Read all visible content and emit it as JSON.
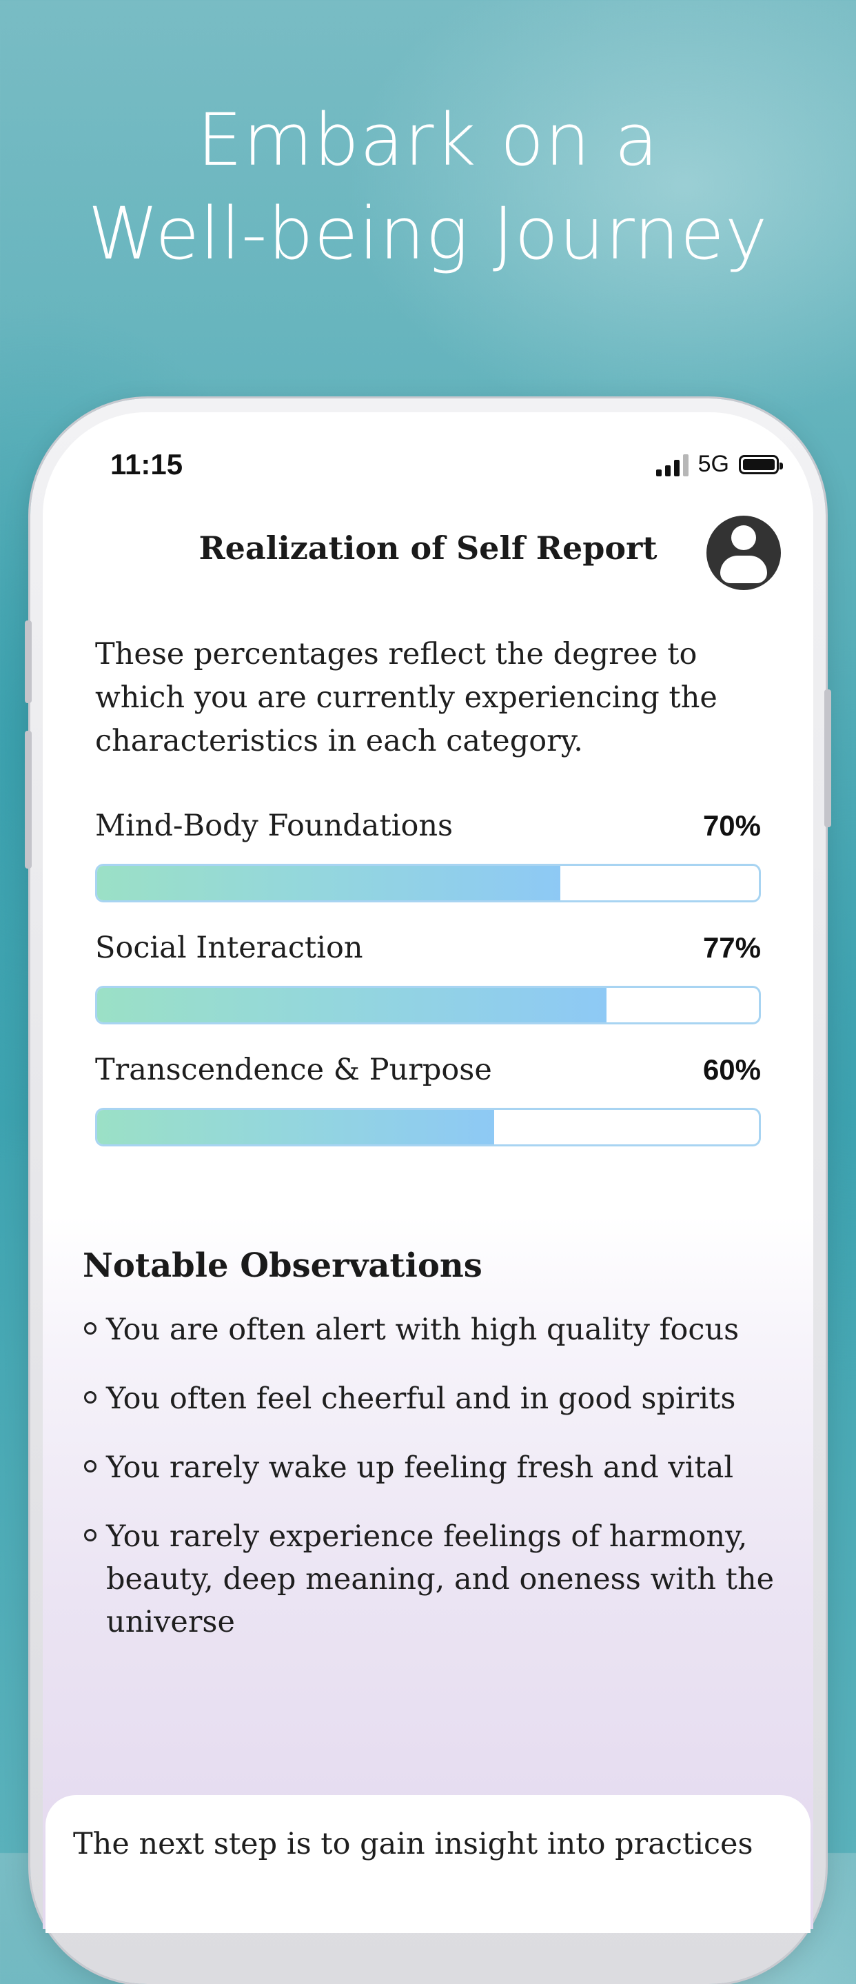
{
  "hero": {
    "line1": "Embark on a",
    "line2": "Well-being Journey"
  },
  "status_bar": {
    "time": "11:15",
    "network": "5G",
    "battery_icon": "battery-full-icon",
    "signal_icon": "cellular-signal-icon"
  },
  "header": {
    "title": "Realization of Self Report",
    "avatar_icon": "user-avatar-icon"
  },
  "intro": "These percentages reflect the degree to which you are currently experiencing the characteristics in each category.",
  "categories": [
    {
      "label": "Mind-Body Foundations",
      "percent_text": "70%",
      "value": 70
    },
    {
      "label": "Social Interaction",
      "percent_text": "77%",
      "value": 77
    },
    {
      "label": "Transcendence & Purpose",
      "percent_text": "60%",
      "value": 60
    }
  ],
  "observations": {
    "title": "Notable Observations",
    "items": [
      "You are often alert with high quality focus",
      "You often feel cheerful and in good spirits",
      "You rarely wake up feeling fresh and vital",
      "You rarely experience feelings of harmony, beauty, deep meaning, and oneness with the universe"
    ]
  },
  "next_step": "The next step is to gain insight into practices",
  "colors": {
    "bar_gradient_start": "#9be0c6",
    "bar_gradient_end": "#8ec9f5",
    "bar_border": "#a8d4f2"
  }
}
